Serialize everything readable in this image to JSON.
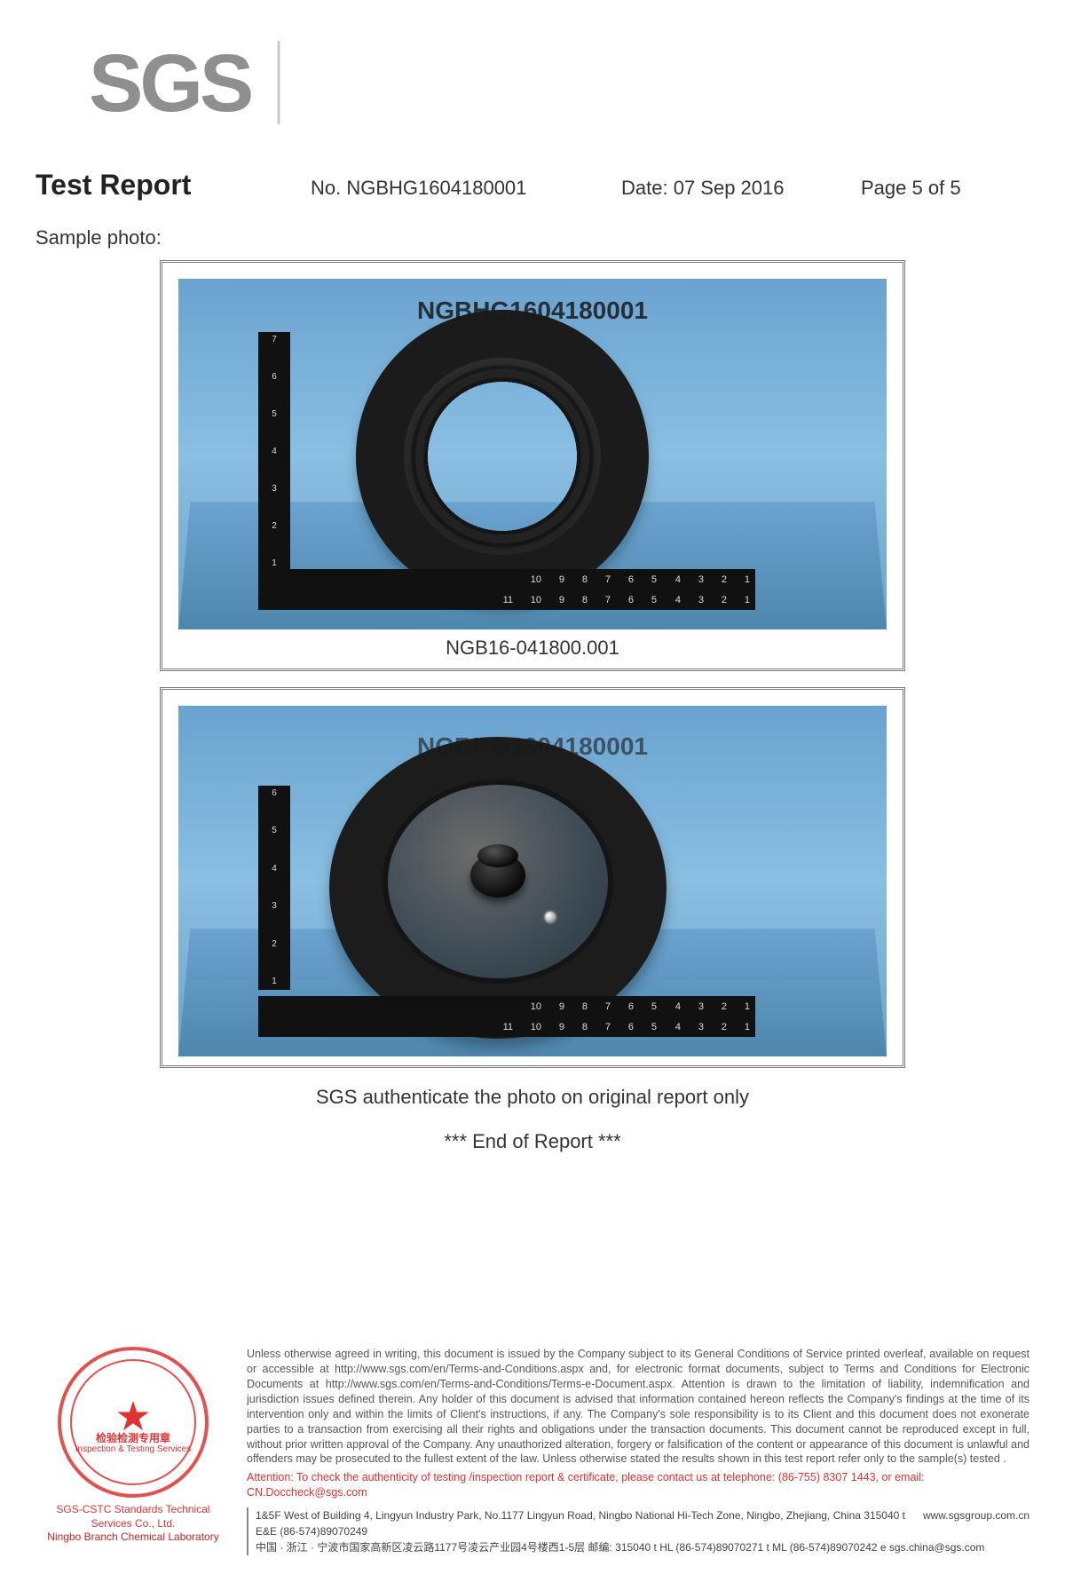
{
  "logo": {
    "text": "SGS",
    "color": "#8a8a8a"
  },
  "header": {
    "title": "Test Report",
    "no_label": "No.",
    "no_value": "NGBHG1604180001",
    "date_label": "Date:",
    "date_value": "07 Sep 2016",
    "page_label": "Page",
    "page_value": "5 of 5"
  },
  "sample_photo_label": "Sample photo:",
  "photos": [
    {
      "overlay_id": "NGBHG1604180001",
      "caption": "NGB16-041800.001",
      "ruler_h_top": [
        "1",
        "2",
        "3",
        "4",
        "5",
        "6",
        "7",
        "8",
        "9",
        "10"
      ],
      "ruler_h_bottom": [
        "1",
        "2",
        "3",
        "4",
        "5",
        "6",
        "7",
        "8",
        "9",
        "10",
        "11"
      ],
      "ruler_v": [
        "1",
        "2",
        "3",
        "4",
        "5",
        "6",
        "7"
      ],
      "bg_color": "#7db2d8",
      "object_color": "#1a1a1a"
    },
    {
      "overlay_id": "NGBHG1604180001",
      "caption": "",
      "ruler_h_top": [
        "1",
        "2",
        "3",
        "4",
        "5",
        "6",
        "7",
        "8",
        "9",
        "10"
      ],
      "ruler_h_bottom": [
        "1",
        "2",
        "3",
        "4",
        "5",
        "6",
        "7",
        "8",
        "9",
        "10",
        "11"
      ],
      "ruler_v": [
        "1",
        "2",
        "3",
        "4",
        "5",
        "6"
      ],
      "bg_color": "#7db2d8",
      "object_color": "#1a1a1a"
    }
  ],
  "auth_line": "SGS authenticate the photo on original report only",
  "end_line": "*** End of Report ***",
  "footer": {
    "stamp": {
      "arc_top": "",
      "line1": "检验检测专用章",
      "line2": "Inspection & Testing Services",
      "color": "#d13a3a"
    },
    "company_line1": "SGS-CSTC Standards Technical Services Co., Ltd.",
    "company_line2": "Ningbo Branch Chemical Laboratory",
    "legal": "Unless otherwise agreed in writing, this document is issued by the Company subject to its General Conditions of Service printed overleaf, available on request or accessible at http://www.sgs.com/en/Terms-and-Conditions.aspx and, for electronic format documents, subject to Terms and Conditions for Electronic Documents at http://www.sgs.com/en/Terms-and-Conditions/Terms-e-Document.aspx. Attention is drawn to the limitation of liability, indemnification and jurisdiction issues defined therein. Any holder of this document is advised that information contained hereon reflects the Company's findings at the time of its intervention only and within the limits of Client's instructions, if any. The Company's sole responsibility is to its Client and this document does not exonerate parties to a transaction from exercising all their rights and obligations under the transaction documents. This document cannot be reproduced except in full, without prior written approval of the Company. Any unauthorized alteration, forgery or falsification of the content or appearance of this document is unlawful and offenders may be prosecuted to the fullest extent of the law. Unless otherwise stated the results shown in this test report refer only to the sample(s) tested .",
    "attention": "Attention: To check the authenticity of testing /inspection report & certificate, please contact us at telephone: (86-755) 8307 1443, or email: CN.Doccheck@sgs.com",
    "addr_en": "1&5F West of Building 4, Lingyun Industry Park, No.1177 Lingyun Road, Ningbo National Hi-Tech Zone, Ningbo, Zhejiang, China   315040   t E&E (86-574)89070249",
    "addr_cn": "中国 · 浙江 · 宁波市国家高新区凌云路1177号凌云产业园4号楼西1-5层        邮编: 315040   t HL   (86-574)89070271   t ML (86-574)89070242   e sgs.china@sgs.com",
    "website": "www.sgsgroup.com.cn"
  }
}
